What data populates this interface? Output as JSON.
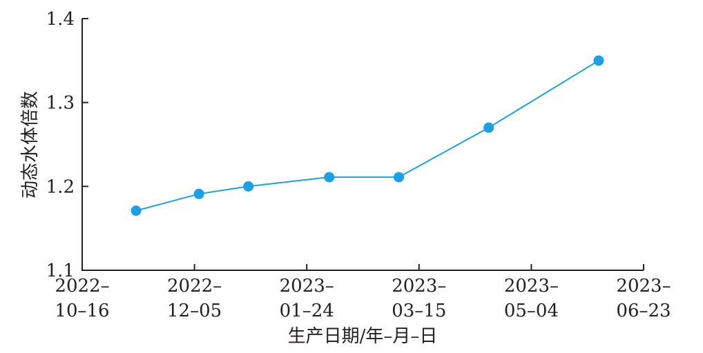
{
  "chart_data": {
    "type": "line",
    "title": "",
    "xlabel": "生产日期/年–月–日",
    "ylabel": "动态水体倍数",
    "xlim": [
      "2022-10-16",
      "2023-06-23"
    ],
    "ylim": [
      1.1,
      1.4
    ],
    "x_ticks": [
      {
        "value": "2022-10-16",
        "line1": "2022–",
        "line2": "10–16"
      },
      {
        "value": "2022-12-05",
        "line1": "2022–",
        "line2": "12–05"
      },
      {
        "value": "2023-01-24",
        "line1": "2023–",
        "line2": "01–24"
      },
      {
        "value": "2023-03-15",
        "line1": "2023–",
        "line2": "03–15"
      },
      {
        "value": "2023-05-04",
        "line1": "2023–",
        "line2": "05–04"
      },
      {
        "value": "2023-06-23",
        "line1": "2023–",
        "line2": "06–23"
      }
    ],
    "y_ticks": [
      {
        "value": 1.1,
        "label": "1.1"
      },
      {
        "value": 1.2,
        "label": "1.2"
      },
      {
        "value": 1.3,
        "label": "1.3"
      },
      {
        "value": 1.4,
        "label": "1.4"
      }
    ],
    "series": [
      {
        "color": "#1aa0e6",
        "points": [
          {
            "x": "2022-11-09",
            "y": 1.171
          },
          {
            "x": "2022-12-07",
            "y": 1.191
          },
          {
            "x": "2022-12-29",
            "y": 1.2
          },
          {
            "x": "2023-02-03",
            "y": 1.211
          },
          {
            "x": "2023-03-06",
            "y": 1.211
          },
          {
            "x": "2023-04-15",
            "y": 1.27
          },
          {
            "x": "2023-06-03",
            "y": 1.35
          }
        ]
      }
    ],
    "grid": false,
    "legend": "none"
  }
}
